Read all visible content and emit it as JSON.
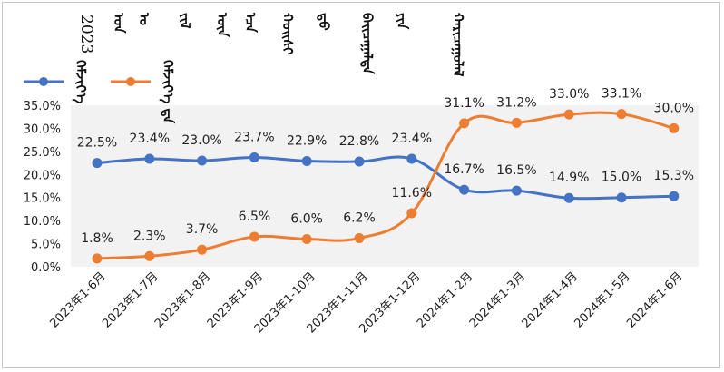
{
  "chart_data": {
    "type": "line",
    "title": "2023",
    "title_script": "ᠣᠨ ᠤ ᠵᠢᠯ ᠦᠨ ᠡᠴᠡ ᠬᠣᠢᠰᠢ ᠳ᠋ᠤ ᠪᠠᠢᠴᠠᠭᠠᠯᠲᠠ ᠶᠢᠨ ᠬᠠᠷᠢᠴᠠᠭᠤᠯᠠᠯ",
    "categories": [
      "2023年1-6月",
      "2023年1-7月",
      "2023年1-8月",
      "2023年1-9月",
      "2023年1-10月",
      "2023年1-11月",
      "2023年1-12月",
      "2024年1-2月",
      "2024年1-3月",
      "2024年1-4月",
      "2024年1-5月",
      "2024年1-6月"
    ],
    "series": [
      {
        "name": "ᠬᠡᠮᠵᠢᠶ᠎ᠡ",
        "color": "#4472C4",
        "values": [
          22.5,
          23.4,
          23.0,
          23.7,
          22.9,
          22.8,
          23.4,
          16.7,
          16.5,
          14.9,
          15.0,
          15.3
        ],
        "labels": [
          "22.5%",
          "23.4%",
          "23.0%",
          "23.7%",
          "22.9%",
          "22.8%",
          "23.4%",
          "16.7%",
          "16.5%",
          "14.9%",
          "15.0%",
          "15.3%"
        ]
      },
      {
        "name": "ᠬᠡᠮᠵᠢᠶ᠎ᠡ ᠳᠠ",
        "color": "#ED7D31",
        "values": [
          1.8,
          2.3,
          3.7,
          6.5,
          6.0,
          6.2,
          11.6,
          31.1,
          31.2,
          33.0,
          33.1,
          30.0
        ],
        "labels": [
          "1.8%",
          "2.3%",
          "3.7%",
          "6.5%",
          "6.0%",
          "6.2%",
          "11.6%",
          "31.1%",
          "31.2%",
          "33.0%",
          "33.1%",
          "30.0%"
        ]
      }
    ],
    "ylim": [
      0,
      35
    ],
    "yticks": [
      "0.0%",
      "5.0%",
      "10.0%",
      "15.0%",
      "20.0%",
      "25.0%",
      "30.0%",
      "35.0%"
    ],
    "xlabel": "",
    "ylabel": "",
    "legend": "top-left",
    "grid": false,
    "plot_background": "#f2f2f2"
  }
}
